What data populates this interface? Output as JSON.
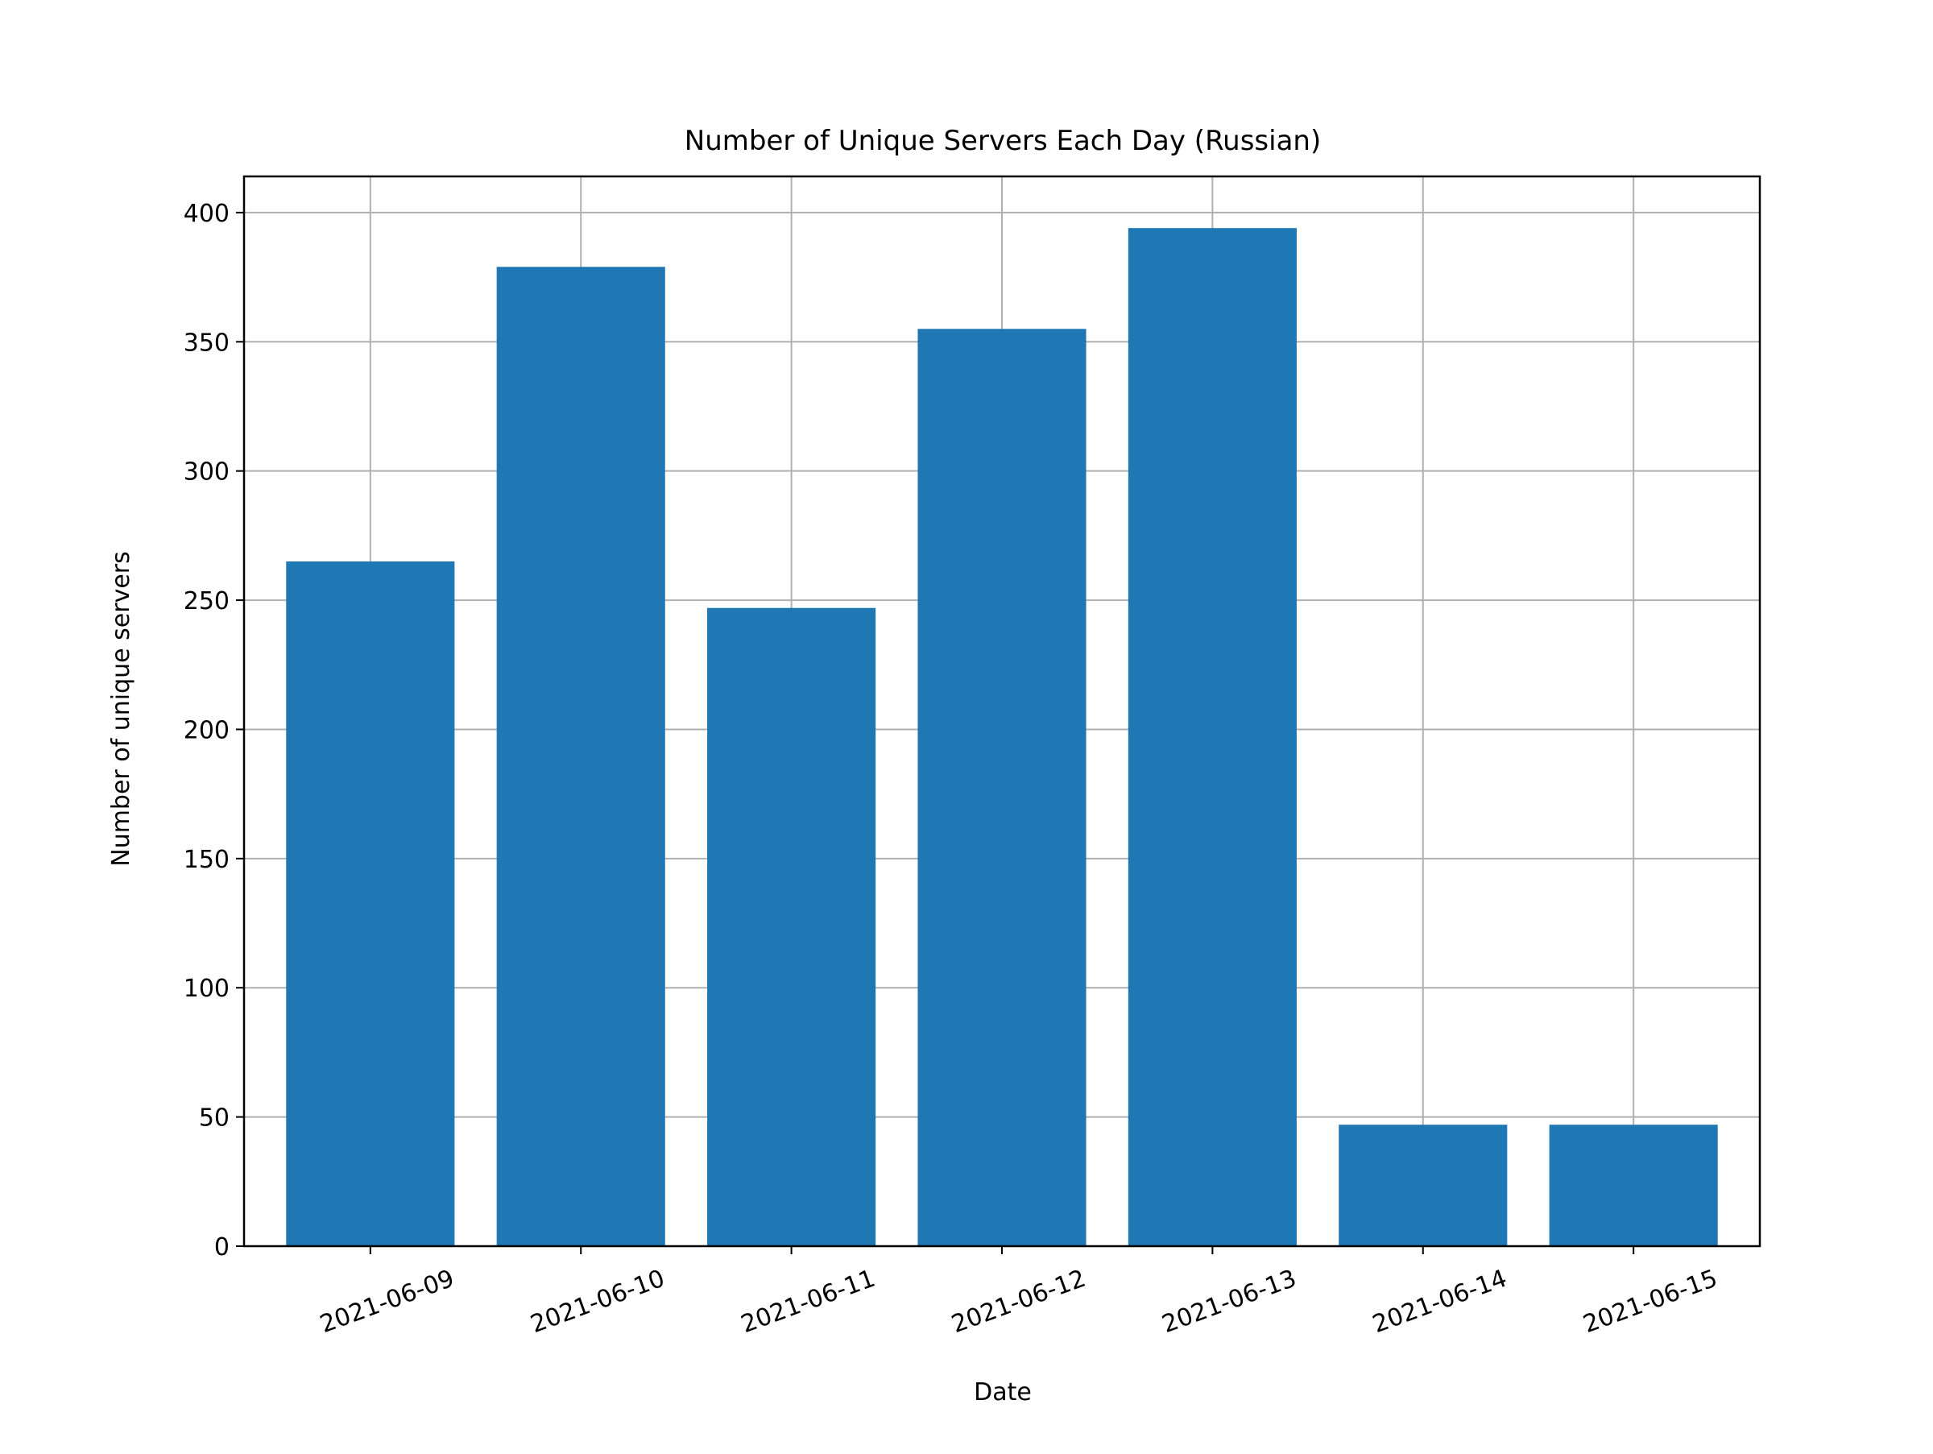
{
  "chart_data": {
    "type": "bar",
    "title": "Number of Unique Servers Each Day (Russian)",
    "xlabel": "Date",
    "ylabel": "Number of unique servers",
    "categories": [
      "2021-06-09",
      "2021-06-10",
      "2021-06-11",
      "2021-06-12",
      "2021-06-13",
      "2021-06-14",
      "2021-06-15"
    ],
    "values": [
      265,
      379,
      247,
      355,
      394,
      47,
      47
    ],
    "ylim": [
      0,
      414
    ],
    "yticks": [
      0,
      50,
      100,
      150,
      200,
      250,
      300,
      350,
      400
    ],
    "grid": true,
    "bar_color": "#1f77b4"
  }
}
